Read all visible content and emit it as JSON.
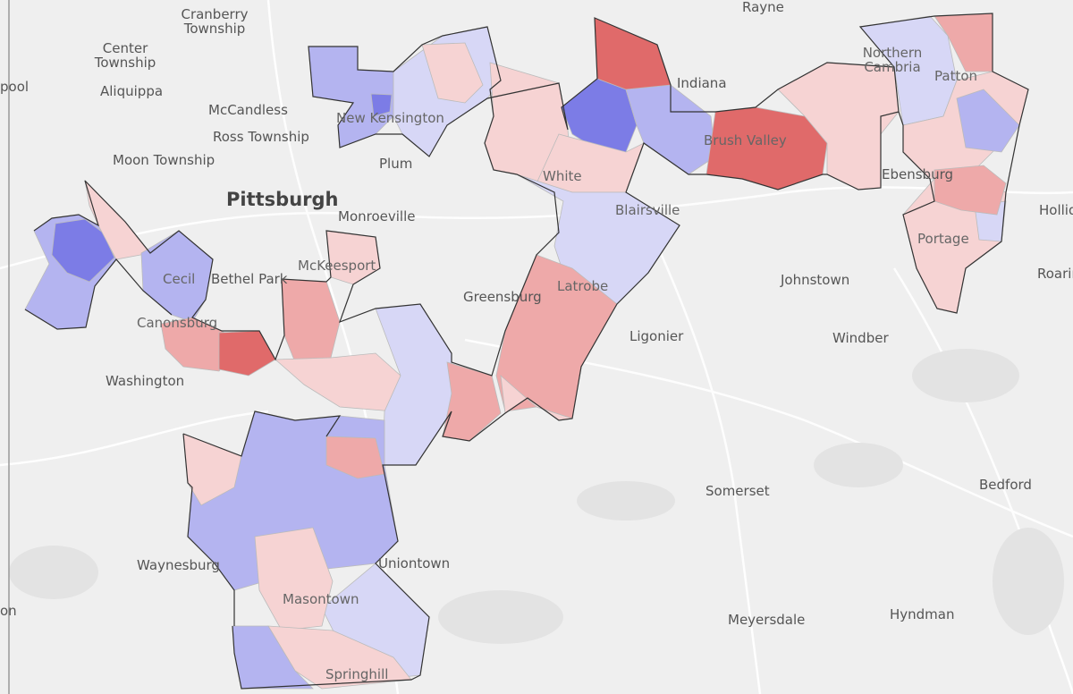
{
  "places": [
    {
      "id": "cranberry",
      "text": "Cranberry\nTownship"
    },
    {
      "id": "rayne",
      "text": "Rayne"
    },
    {
      "id": "center",
      "text": "Center\nTownship"
    },
    {
      "id": "aliquippa",
      "text": "Aliquippa"
    },
    {
      "id": "pool",
      "text": "pool"
    },
    {
      "id": "mccandless",
      "text": "McCandless"
    },
    {
      "id": "ross",
      "text": "Ross Township"
    },
    {
      "id": "newkens",
      "text": "New Kensington"
    },
    {
      "id": "plum",
      "text": "Plum"
    },
    {
      "id": "moon",
      "text": "Moon Township"
    },
    {
      "id": "pittsburgh",
      "text": "Pittsburgh"
    },
    {
      "id": "monroeville",
      "text": "Monroeville"
    },
    {
      "id": "mckeesport",
      "text": "McKeesport"
    },
    {
      "id": "bethel",
      "text": "Bethel Park"
    },
    {
      "id": "cecil",
      "text": "Cecil"
    },
    {
      "id": "canonsburg",
      "text": "Canonsburg"
    },
    {
      "id": "washington",
      "text": "Washington"
    },
    {
      "id": "greensburg",
      "text": "Greensburg"
    },
    {
      "id": "white",
      "text": "White"
    },
    {
      "id": "blairsville",
      "text": "Blairsville"
    },
    {
      "id": "latrobe",
      "text": "Latrobe"
    },
    {
      "id": "indiana",
      "text": "Indiana"
    },
    {
      "id": "brush",
      "text": "Brush Valley"
    },
    {
      "id": "ncambria",
      "text": "Northern\nCambria"
    },
    {
      "id": "patton",
      "text": "Patton"
    },
    {
      "id": "ebensburg",
      "text": "Ebensburg"
    },
    {
      "id": "hollid",
      "text": "Hollid"
    },
    {
      "id": "portage",
      "text": "Portage"
    },
    {
      "id": "roarin",
      "text": "Roarin"
    },
    {
      "id": "johnstown",
      "text": "Johnstown"
    },
    {
      "id": "ligonier",
      "text": "Ligonier"
    },
    {
      "id": "windber",
      "text": "Windber"
    },
    {
      "id": "somerset",
      "text": "Somerset"
    },
    {
      "id": "bedford",
      "text": "Bedford"
    },
    {
      "id": "uniontown",
      "text": "Uniontown"
    },
    {
      "id": "waynesburg",
      "text": "Waynesburg"
    },
    {
      "id": "masontown",
      "text": "Masontown"
    },
    {
      "id": "meyersdale",
      "text": "Meyersdale"
    },
    {
      "id": "hyndman",
      "text": "Hyndman"
    },
    {
      "id": "springhill",
      "text": "Springhill"
    },
    {
      "id": "on",
      "text": "on"
    }
  ],
  "colors": {
    "background": "#efefef",
    "strong_red": "#e06a6a",
    "mid_red": "#eea9a9",
    "light_red": "#f6d3d3",
    "strong_blue": "#7c7ce6",
    "mid_blue": "#b4b4f0",
    "light_blue": "#d7d7f6",
    "boundary": "#333333"
  }
}
